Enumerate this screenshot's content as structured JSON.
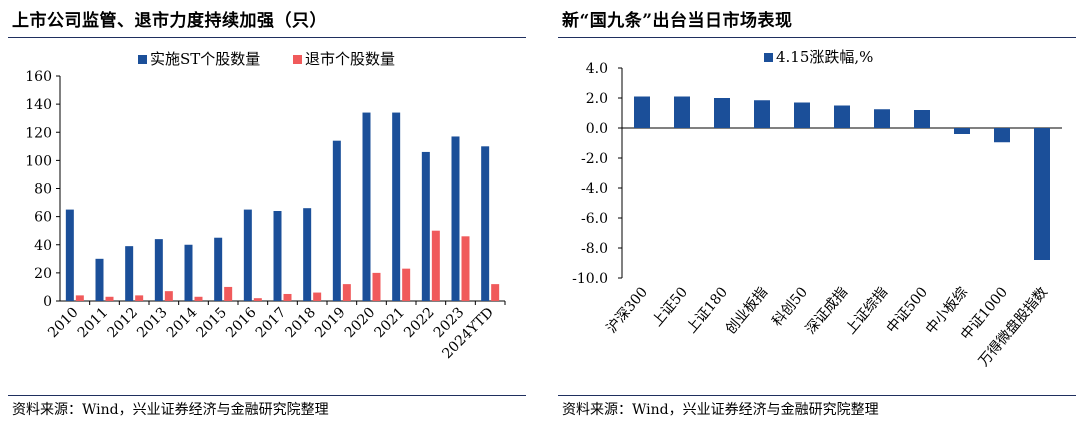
{
  "left_panel": {
    "title": "上市公司监管、退市力度持续加强（只）",
    "source": "资料来源：Wind，兴业证券经济与金融研究院整理"
  },
  "right_panel": {
    "title": "新“国九条”出台当日市场表现",
    "source": "资料来源：Wind，兴业证券经济与金融研究院整理"
  },
  "colors": {
    "blue": "#1b4f99",
    "red": "#f05a5b",
    "rule": "#1f2f5e"
  },
  "chart_data": [
    {
      "type": "bar",
      "title": "",
      "categories": [
        "2010",
        "2011",
        "2012",
        "2013",
        "2014",
        "2015",
        "2016",
        "2017",
        "2018",
        "2019",
        "2020",
        "2021",
        "2022",
        "2023",
        "2024YTD"
      ],
      "series": [
        {
          "name": "实施ST个股数量",
          "color": "#1b4f99",
          "values": [
            65,
            30,
            39,
            44,
            40,
            45,
            65,
            64,
            66,
            114,
            134,
            134,
            106,
            117,
            110
          ]
        },
        {
          "name": "退市个股数量",
          "color": "#f05a5b",
          "values": [
            4,
            3,
            4,
            7,
            3,
            10,
            2,
            5,
            6,
            12,
            20,
            23,
            50,
            46,
            12
          ]
        }
      ],
      "ylim": [
        0,
        160
      ],
      "yticks": [
        0,
        20,
        40,
        60,
        80,
        100,
        120,
        140,
        160
      ],
      "legend": "top-center",
      "grid": false
    },
    {
      "type": "bar",
      "title": "",
      "categories": [
        "沪深300",
        "上证50",
        "上证180",
        "创业板指",
        "科创50",
        "深证成指",
        "上证综指",
        "中证500",
        "中小板综",
        "中证1000",
        "万得微盘股指数"
      ],
      "series": [
        {
          "name": "4.15涨跌幅,%",
          "color": "#1b4f99",
          "values": [
            2.1,
            2.1,
            2.0,
            1.85,
            1.7,
            1.5,
            1.25,
            1.2,
            -0.4,
            -0.95,
            -8.8
          ]
        }
      ],
      "ylim": [
        -10,
        4
      ],
      "yticks": [
        "4.0",
        "2.0",
        "0.0",
        "-2.0",
        "-4.0",
        "-6.0",
        "-8.0",
        "-10.0"
      ],
      "legend": "top-center",
      "grid": false
    }
  ]
}
